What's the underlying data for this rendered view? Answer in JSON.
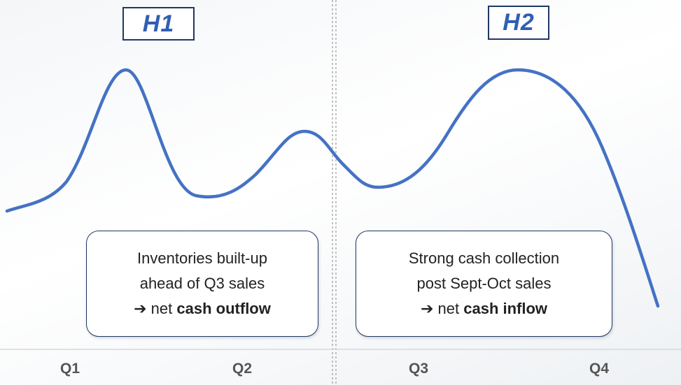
{
  "header": {
    "labels": [
      "H1",
      "H2"
    ]
  },
  "boxes": [
    {
      "lines": [
        "Inventories built-up",
        "ahead of Q3 sales"
      ],
      "conclusion": {
        "prefix": "➔ net",
        "emphasis": "cash outflow"
      }
    },
    {
      "lines": [
        "Strong cash collection",
        "post Sept-Oct sales"
      ],
      "conclusion": {
        "prefix": "➔ net",
        "emphasis": "cash inflow"
      }
    }
  ],
  "quarters": [
    "Q1",
    "Q2",
    "Q3",
    "Q4"
  ]
}
